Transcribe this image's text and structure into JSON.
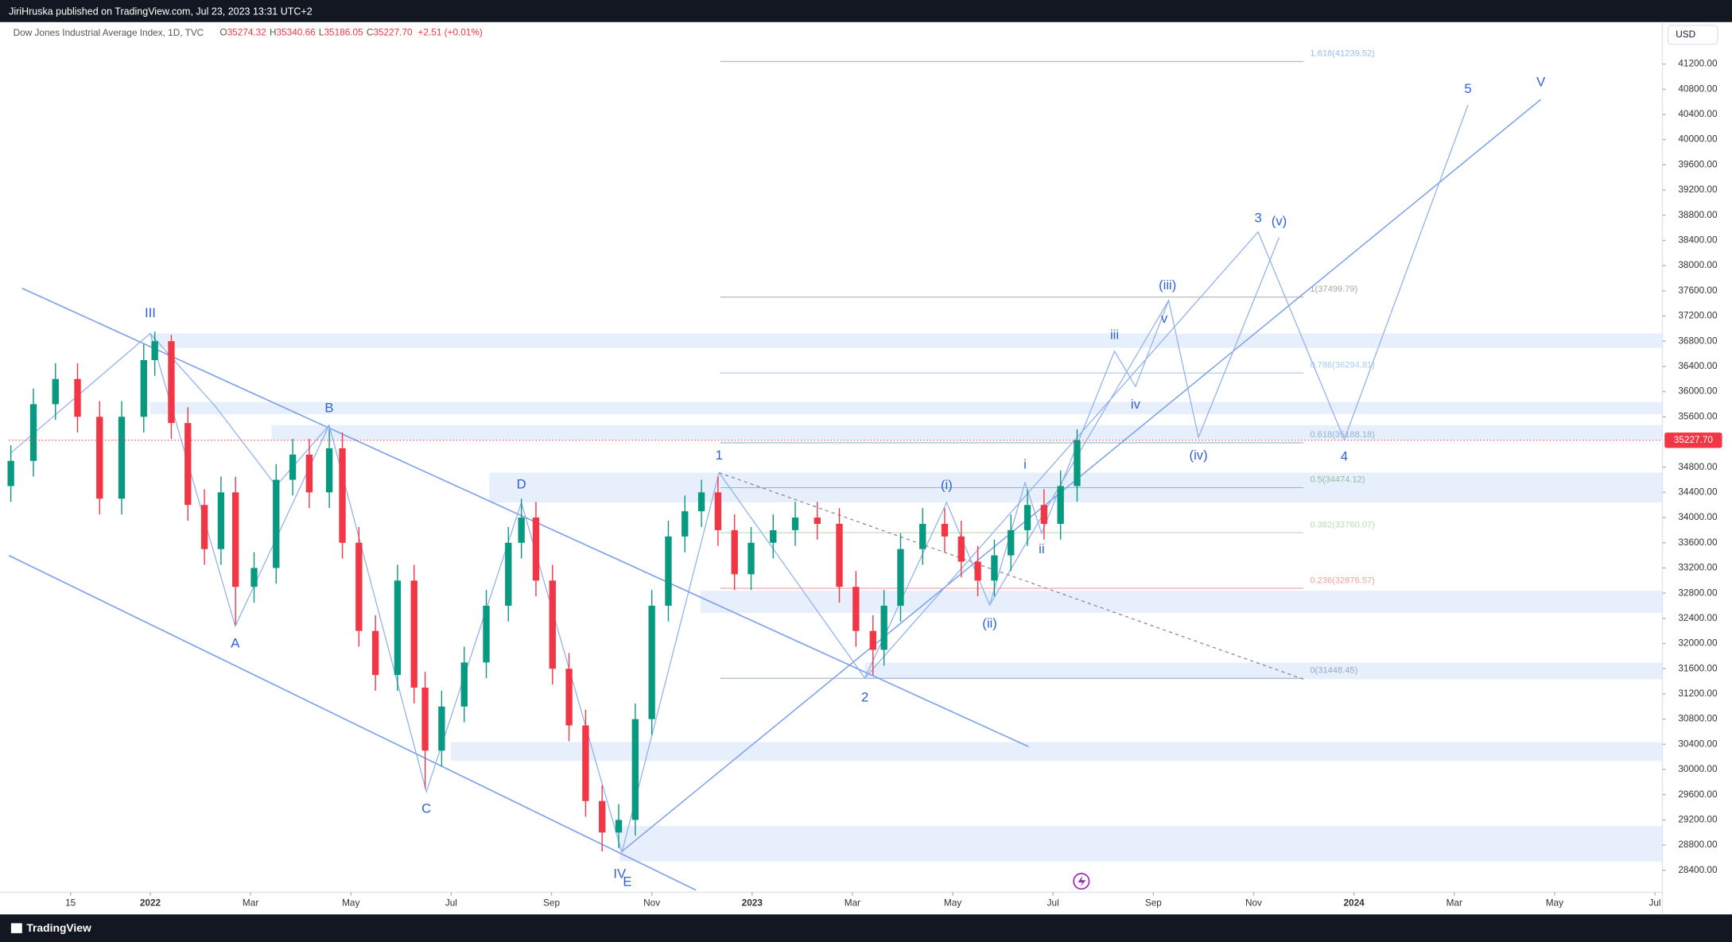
{
  "header": {
    "publisher": "JiriHruska published on TradingView.com, Jul 23, 2023 13:31 UTC+2",
    "symbol": "Dow Jones Industrial Average Index, 1D, TVC",
    "ohlc": [
      {
        "key": "O",
        "value": "35274.32"
      },
      {
        "key": "H",
        "value": "35340.66"
      },
      {
        "key": "L",
        "value": "35186.05"
      },
      {
        "key": "C",
        "value": "35227.70"
      }
    ],
    "change": "+2.51 (+0.01%)"
  },
  "chart_data": {
    "type": "candlestick",
    "x": [
      -2.78,
      -2.33,
      -1.89,
      -1.45,
      -1.01,
      -0.57,
      -0.13,
      0.09,
      0.42,
      0.75,
      1.08,
      1.41,
      1.7,
      2.07,
      2.51,
      2.84,
      3.17,
      3.57,
      3.83,
      4.16,
      4.49,
      4.93,
      5.26,
      5.48,
      5.81,
      6.26,
      6.7,
      7.14,
      7.4,
      7.69,
      8.02,
      8.35,
      8.68,
      9.01,
      9.34,
      9.67,
      10.0,
      10.33,
      10.66,
      10.99,
      11.32,
      11.65,
      11.98,
      12.42,
      12.86,
      13.3,
      13.74,
      14.07,
      14.41,
      14.63,
      14.96,
      15.4,
      15.84,
      16.17,
      16.5,
      16.83,
      17.16,
      17.49,
      17.82,
      18.15,
      18.48
    ],
    "open": [
      34500,
      34900,
      35800,
      36200,
      35600,
      34300,
      35600,
      36500,
      36800,
      35500,
      34200,
      33500,
      34400,
      32900,
      33200,
      34600,
      35000,
      34400,
      35100,
      33600,
      32200,
      31500,
      33000,
      31300,
      30300,
      31000,
      31700,
      32600,
      33600,
      34000,
      33000,
      31600,
      30700,
      29500,
      29000,
      29200,
      30800,
      32600,
      33700,
      34100,
      34400,
      33800,
      33100,
      33600,
      33800,
      34000,
      33900,
      32900,
      32200,
      31900,
      32600,
      33500,
      33900,
      33700,
      33300,
      33000,
      33400,
      33800,
      34200,
      33900,
      34500
    ],
    "high": [
      35150,
      36050,
      36450,
      36450,
      35850,
      35850,
      36750,
      36950,
      36900,
      35750,
      34450,
      34650,
      34650,
      33450,
      34850,
      35250,
      35250,
      35400,
      35350,
      33850,
      32450,
      33250,
      33250,
      31550,
      31250,
      31950,
      32850,
      33850,
      34300,
      34250,
      33250,
      31850,
      30950,
      29750,
      29450,
      31050,
      32850,
      33950,
      34350,
      34600,
      34650,
      34050,
      33850,
      34050,
      34250,
      34250,
      34150,
      33150,
      32450,
      32850,
      33750,
      34150,
      34150,
      33950,
      33550,
      33650,
      34050,
      34450,
      34450,
      34750,
      35400
    ],
    "low": [
      34250,
      34650,
      35550,
      35350,
      34050,
      34050,
      35350,
      36250,
      35250,
      33950,
      33250,
      33250,
      32300,
      32650,
      32950,
      34350,
      34150,
      34150,
      33350,
      31950,
      31250,
      31250,
      31050,
      29700,
      30050,
      30750,
      31450,
      32350,
      33350,
      32750,
      31350,
      30450,
      29250,
      28700,
      28750,
      28950,
      30550,
      32350,
      33450,
      33850,
      33550,
      32850,
      32850,
      33350,
      33550,
      33650,
      32650,
      31950,
      31500,
      31650,
      32350,
      33250,
      33450,
      33050,
      32750,
      32750,
      33150,
      33550,
      33650,
      33650,
      34250
    ],
    "close": [
      34900,
      35800,
      36200,
      35600,
      34300,
      35600,
      36500,
      36800,
      35500,
      34200,
      33500,
      34400,
      32900,
      33200,
      34600,
      35000,
      34400,
      35100,
      33600,
      32200,
      31500,
      33000,
      31300,
      30300,
      31000,
      31700,
      32600,
      33600,
      34000,
      33000,
      31600,
      30700,
      29500,
      29000,
      29200,
      30800,
      32600,
      33700,
      34100,
      34400,
      33800,
      33100,
      33600,
      33800,
      34000,
      33900,
      32900,
      32200,
      31900,
      32600,
      33500,
      33900,
      33700,
      33300,
      33000,
      33400,
      33800,
      34200,
      33900,
      34500,
      35228
    ],
    "up_color": "#089981",
    "down_color": "#f23645",
    "xlim": [
      -2.82,
      30.15
    ],
    "xticks": [
      {
        "value": -1.59,
        "label": "15"
      },
      {
        "value": 0,
        "label": "2022"
      },
      {
        "value": 2,
        "label": "Mar"
      },
      {
        "value": 4,
        "label": "May"
      },
      {
        "value": 6,
        "label": "Jul"
      },
      {
        "value": 8,
        "label": "Sep"
      },
      {
        "value": 10,
        "label": "Nov"
      },
      {
        "value": 12,
        "label": "2023"
      },
      {
        "value": 14,
        "label": "Mar"
      },
      {
        "value": 16,
        "label": "May"
      },
      {
        "value": 18,
        "label": "Jul"
      },
      {
        "value": 20,
        "label": "Sep"
      },
      {
        "value": 22,
        "label": "Nov"
      },
      {
        "value": 24,
        "label": "2024"
      },
      {
        "value": 26,
        "label": "Mar"
      },
      {
        "value": 28,
        "label": "May"
      },
      {
        "value": 30,
        "label": "Jul"
      }
    ],
    "ylim": [
      27700,
      41866
    ],
    "yticks": [
      {
        "value": 28400,
        "label": "28400.00"
      },
      {
        "value": 28800,
        "label": "28800.00"
      },
      {
        "value": 29200,
        "label": "29200.00"
      },
      {
        "value": 29600,
        "label": "29600.00"
      },
      {
        "value": 30000,
        "label": "30000.00"
      },
      {
        "value": 30400,
        "label": "30400.00"
      },
      {
        "value": 30800,
        "label": "30800.00"
      },
      {
        "value": 31200,
        "label": "31200.00"
      },
      {
        "value": 31600,
        "label": "31600.00"
      },
      {
        "value": 32000,
        "label": "32000.00"
      },
      {
        "value": 32400,
        "label": "32400.00"
      },
      {
        "value": 32800,
        "label": "32800.00"
      },
      {
        "value": 33200,
        "label": "33200.00"
      },
      {
        "value": 33600,
        "label": "33600.00"
      },
      {
        "value": 34000,
        "label": "34000.00"
      },
      {
        "value": 34400,
        "label": "34400.00"
      },
      {
        "value": 34800,
        "label": "34800.00"
      },
      {
        "value": 35600,
        "label": "35600.00"
      },
      {
        "value": 36000,
        "label": "36000.00"
      },
      {
        "value": 36400,
        "label": "36400.00"
      },
      {
        "value": 36800,
        "label": "36800.00"
      },
      {
        "value": 37200,
        "label": "37200.00"
      },
      {
        "value": 37600,
        "label": "37600.00"
      },
      {
        "value": 38000,
        "label": "38000.00"
      },
      {
        "value": 38400,
        "label": "38400.00"
      },
      {
        "value": 38800,
        "label": "38800.00"
      },
      {
        "value": 39200,
        "label": "39200.00"
      },
      {
        "value": 39600,
        "label": "39600.00"
      },
      {
        "value": 40000,
        "label": "40000.00"
      },
      {
        "value": 40400,
        "label": "40400.00"
      },
      {
        "value": 40800,
        "label": "40800.00"
      },
      {
        "value": 41200,
        "label": "41200.00"
      }
    ],
    "currency": "USD",
    "last_price": {
      "value": 35227.7,
      "label": "35227.70"
    },
    "fib_levels": [
      {
        "value": 41239.52,
        "label": "1.618(41239.52)",
        "color": "#9bbbe8"
      },
      {
        "value": 37499.79,
        "label": "1(37499.79)",
        "color": "#a8a8a8"
      },
      {
        "value": 36294.81,
        "label": "0.786(36294.81)",
        "color": "#a9cbee"
      },
      {
        "value": 35188.18,
        "label": "0.618(35188.18)",
        "color": "#8fb4cf"
      },
      {
        "value": 34474.12,
        "label": "0.5(34474.12)",
        "color": "#8fbf9a"
      },
      {
        "value": 33760.07,
        "label": "0.382(33760.07)",
        "color": "#b9dcb4"
      },
      {
        "value": 32876.57,
        "label": "0.236(32876.57)",
        "color": "#f2a0a0"
      },
      {
        "value": 31448.45,
        "label": "0(31448.45)",
        "color": "#9aa9c0"
      }
    ],
    "annotations": [
      "III",
      "A",
      "B",
      "C",
      "D",
      "IV",
      "E",
      "1",
      "2",
      "3",
      "4",
      "5",
      "V",
      "i",
      "ii",
      "iii",
      "iv",
      "v",
      "(i)",
      "(ii)",
      "(iii)",
      "(iv)",
      "(v)"
    ]
  },
  "footer": {
    "brand": "TradingView"
  }
}
